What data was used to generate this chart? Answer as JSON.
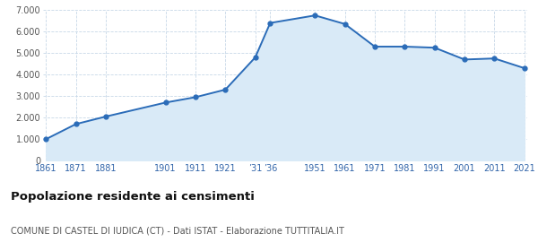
{
  "years": [
    1861,
    1871,
    1881,
    1901,
    1911,
    1921,
    1931,
    1936,
    1951,
    1961,
    1971,
    1981,
    1991,
    2001,
    2011,
    2021
  ],
  "population": [
    1000,
    1700,
    2050,
    2700,
    2950,
    3300,
    4800,
    6400,
    6750,
    6350,
    5300,
    5300,
    5250,
    4700,
    4750,
    4300
  ],
  "line_color": "#2B6CB8",
  "fill_color": "#D9EAF7",
  "marker_color": "#2B6CB8",
  "background_color": "#FFFFFF",
  "grid_color": "#C8D8E8",
  "title": "Popolazione residente ai censimenti",
  "subtitle": "COMUNE DI CASTEL DI IUDICA (CT) - Dati ISTAT - Elaborazione TUTTITALIA.IT",
  "ylim": [
    0,
    7000
  ],
  "yticks": [
    0,
    1000,
    2000,
    3000,
    4000,
    5000,
    6000,
    7000
  ],
  "x_tick_positions": [
    1861,
    1871,
    1881,
    1901,
    1911,
    1921,
    1931,
    1936,
    1951,
    1961,
    1971,
    1981,
    1991,
    2001,
    2011,
    2021
  ],
  "x_tick_labels": [
    "1861",
    "1871",
    "1881",
    "1901",
    "1911",
    "1921",
    "’31",
    "’36",
    "1951",
    "1961",
    "1971",
    "1981",
    "1991",
    "2001",
    "2011",
    "2021"
  ]
}
